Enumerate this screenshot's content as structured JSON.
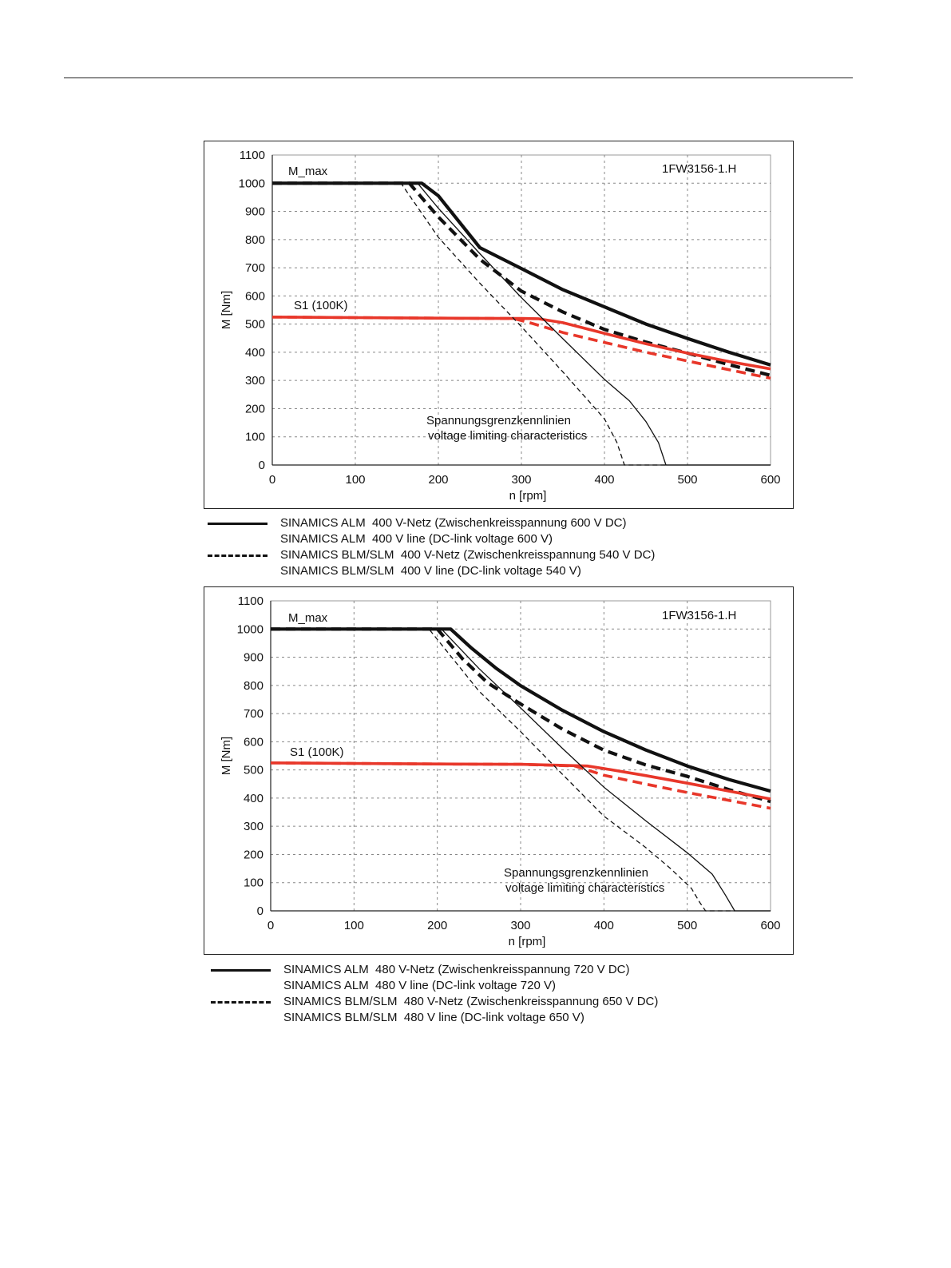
{
  "chart_data": [
    {
      "type": "line",
      "title": "1FW3156-1.H",
      "xlabel": "n [rpm]",
      "ylabel": "M [Nm]",
      "xlim": [
        0,
        600
      ],
      "ylim": [
        0,
        1100
      ],
      "xticks": [
        "0",
        "100",
        "200",
        "300",
        "400",
        "500",
        "600"
      ],
      "yticks": [
        "0",
        "100",
        "200",
        "300",
        "400",
        "500",
        "600",
        "700",
        "800",
        "900",
        "1000",
        "1100"
      ],
      "grid": true,
      "annotations": {
        "mmax": "M_max",
        "s1": "S1 (100K)",
        "vl_de": "Spannungsgrenzkennlinien",
        "vl_en": "voltage limiting characteristics"
      },
      "series": [
        {
          "color": "#111111",
          "dashed": false,
          "weight": "thick",
          "x": [
            0,
            180,
            200,
            250,
            300,
            350,
            400,
            450,
            500,
            550,
            600
          ],
          "y": [
            1000,
            1000,
            955,
            771,
            697,
            622,
            561,
            500,
            449,
            400,
            355
          ]
        },
        {
          "color": "#111111",
          "dashed": true,
          "weight": "thick",
          "x": [
            0,
            165,
            200,
            250,
            300,
            350,
            400,
            450,
            500,
            550,
            600
          ],
          "y": [
            1000,
            1000,
            880,
            730,
            617,
            543,
            481,
            436,
            397,
            356,
            318
          ]
        },
        {
          "color": "#e8372a",
          "dashed": false,
          "weight": "medium",
          "x": [
            0,
            100,
            200,
            300,
            320,
            350,
            400,
            450,
            500,
            550,
            600
          ],
          "y": [
            525,
            523,
            521,
            520,
            519,
            505,
            467,
            430,
            397,
            367,
            341
          ]
        },
        {
          "color": "#e8372a",
          "dashed": true,
          "weight": "medium",
          "x": [
            0,
            100,
            200,
            290,
            310,
            350,
            400,
            450,
            500,
            550,
            600
          ],
          "y": [
            525,
            523,
            521,
            520,
            505,
            470,
            435,
            400,
            369,
            338,
            308
          ]
        },
        {
          "color": "#111111",
          "dashed": false,
          "weight": "thin",
          "x": [
            0,
            175,
            200,
            250,
            300,
            350,
            400,
            430,
            450,
            465,
            474,
            600
          ],
          "y": [
            1000,
            1000,
            911,
            750,
            594,
            448,
            304,
            228,
            154,
            80,
            0,
            0
          ]
        },
        {
          "color": "#111111",
          "dashed": true,
          "weight": "thin",
          "x": [
            0,
            155,
            200,
            250,
            300,
            350,
            400,
            415,
            424,
            474
          ],
          "y": [
            1000,
            1000,
            808,
            645,
            491,
            330,
            164,
            80,
            0,
            0
          ]
        }
      ]
    },
    {
      "type": "line",
      "title": "1FW3156-1.H",
      "xlabel": "n [rpm]",
      "ylabel": "M [Nm]",
      "xlim": [
        0,
        600
      ],
      "ylim": [
        0,
        1100
      ],
      "xticks": [
        "0",
        "100",
        "200",
        "300",
        "400",
        "500",
        "600"
      ],
      "yticks": [
        "0",
        "100",
        "200",
        "300",
        "400",
        "500",
        "600",
        "700",
        "800",
        "900",
        "1000",
        "1100"
      ],
      "grid": true,
      "annotations": {
        "mmax": "M_max",
        "s1": "S1 (100K)",
        "vl_de": "Spannungsgrenzkennlinien",
        "vl_en": "voltage limiting characteristics"
      },
      "series": [
        {
          "color": "#111111",
          "dashed": false,
          "weight": "thick",
          "x": [
            0,
            216,
            240,
            270,
            300,
            350,
            400,
            450,
            500,
            550,
            600
          ],
          "y": [
            1000,
            1000,
            935,
            862,
            799,
            712,
            636,
            571,
            514,
            466,
            425
          ]
        },
        {
          "color": "#111111",
          "dashed": true,
          "weight": "thick",
          "x": [
            0,
            200,
            230,
            260,
            300,
            350,
            400,
            450,
            500,
            550,
            600
          ],
          "y": [
            1000,
            1000,
            895,
            810,
            734,
            645,
            570,
            518,
            477,
            430,
            388
          ]
        },
        {
          "color": "#e8372a",
          "dashed": false,
          "weight": "medium",
          "x": [
            0,
            100,
            200,
            300,
            380,
            400,
            450,
            500,
            550,
            600
          ],
          "y": [
            525,
            523,
            521,
            520,
            514,
            505,
            480,
            453,
            425,
            397
          ]
        },
        {
          "color": "#e8372a",
          "dashed": true,
          "weight": "medium",
          "x": [
            0,
            100,
            200,
            300,
            365,
            400,
            450,
            500,
            550,
            600
          ],
          "y": [
            525,
            523,
            521,
            520,
            514,
            481,
            450,
            420,
            392,
            364
          ]
        },
        {
          "color": "#111111",
          "dashed": false,
          "weight": "thin",
          "x": [
            0,
            205,
            250,
            300,
            350,
            400,
            450,
            500,
            530,
            545,
            557,
            600
          ],
          "y": [
            1000,
            1000,
            860,
            720,
            577,
            439,
            320,
            206,
            130,
            60,
            0,
            0
          ]
        },
        {
          "color": "#111111",
          "dashed": true,
          "weight": "thin",
          "x": [
            0,
            190,
            250,
            300,
            350,
            400,
            450,
            480,
            505,
            515,
            522,
            557
          ],
          "y": [
            1000,
            1000,
            780,
            636,
            485,
            336,
            225,
            150,
            80,
            30,
            0,
            0
          ]
        }
      ]
    }
  ],
  "legends": [
    [
      {
        "dashed": false,
        "lines": [
          "SINAMICS ALM  400 V-Netz (Zwischenkreisspannung 600 V DC)",
          "SINAMICS ALM  400 V line (DC-link voltage 600 V)"
        ]
      },
      {
        "dashed": true,
        "lines": [
          "SINAMICS BLM/SLM  400 V-Netz (Zwischenkreisspannung 540 V DC)",
          "SINAMICS BLM/SLM  400 V line (DC-link voltage 540 V)"
        ]
      }
    ],
    [
      {
        "dashed": false,
        "lines": [
          "SINAMICS ALM  480 V-Netz (Zwischenkreisspannung 720 V DC)",
          "SINAMICS ALM  480 V line (DC-link voltage 720 V)"
        ]
      },
      {
        "dashed": true,
        "lines": [
          "SINAMICS BLM/SLM  480 V-Netz (Zwischenkreisspannung 650 V DC)",
          "SINAMICS BLM/SLM  480 V line (DC-link voltage 650 V)"
        ]
      }
    ]
  ]
}
